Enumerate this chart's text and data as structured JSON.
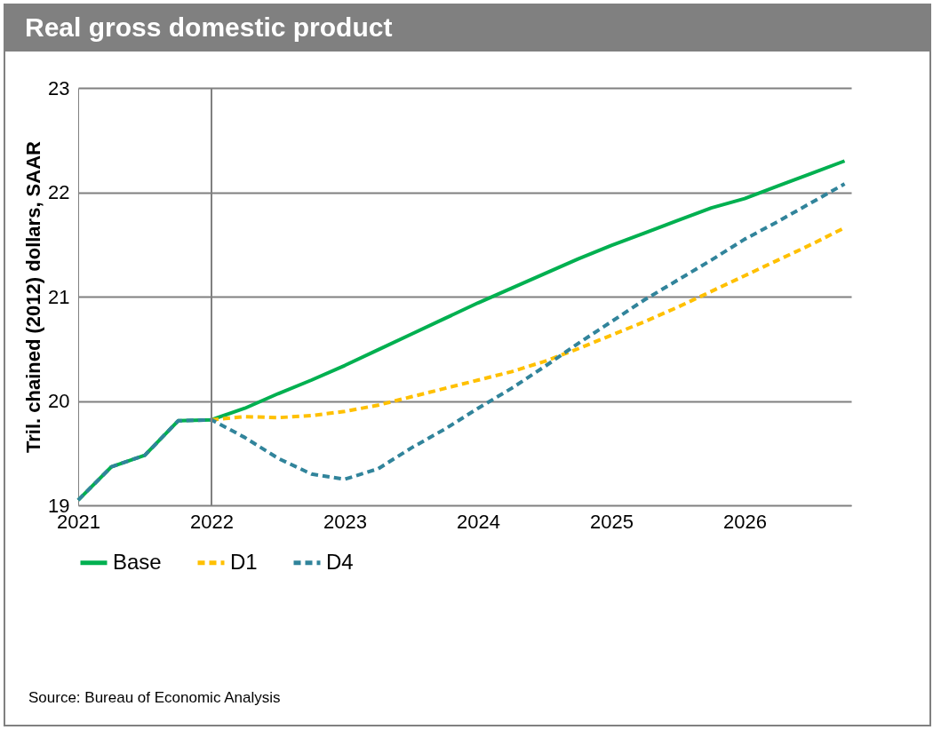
{
  "chart_data": {
    "type": "line",
    "title": "Real gross domestic product",
    "ylabel": "Tril. chained (2012) dollars, SAAR",
    "annotations": [
      "Source: Bureau of Economic Analysis"
    ],
    "x": [
      2021,
      2021.25,
      2021.5,
      2021.75,
      2022,
      2022.25,
      2022.5,
      2022.75,
      2023,
      2023.25,
      2023.5,
      2023.75,
      2024,
      2024.25,
      2024.5,
      2024.75,
      2025,
      2025.25,
      2025.5,
      2025.75,
      2026,
      2026.25,
      2026.5,
      2026.75
    ],
    "series": [
      {
        "name": "Base",
        "color": "#00b050",
        "line_style": "solid",
        "values": [
          19.05,
          19.37,
          19.48,
          19.81,
          19.82,
          19.93,
          20.07,
          20.2,
          20.34,
          20.49,
          20.64,
          20.79,
          20.94,
          21.08,
          21.22,
          21.36,
          21.49,
          21.61,
          21.73,
          21.85,
          21.94,
          22.06,
          22.18,
          22.3
        ]
      },
      {
        "name": "D1",
        "color": "#ffc000",
        "line_style": "dashed",
        "values": [
          null,
          null,
          null,
          null,
          19.82,
          19.85,
          19.84,
          19.86,
          19.9,
          19.96,
          20.04,
          20.12,
          20.2,
          20.28,
          20.38,
          20.5,
          20.63,
          20.76,
          20.9,
          21.05,
          21.2,
          21.35,
          21.5,
          21.66
        ]
      },
      {
        "name": "D4",
        "color": "#31849b",
        "line_style": "dashed",
        "values": [
          19.05,
          19.37,
          19.48,
          19.81,
          19.82,
          19.65,
          19.45,
          19.3,
          19.25,
          19.35,
          19.55,
          19.73,
          19.93,
          20.12,
          20.33,
          20.55,
          20.76,
          20.97,
          21.16,
          21.35,
          21.55,
          21.72,
          21.9,
          22.08
        ]
      }
    ],
    "xlim": [
      2021,
      2026.8
    ],
    "xticks": [
      2021,
      2022,
      2023,
      2024,
      2025,
      2026
    ],
    "ylim": [
      19,
      23
    ],
    "yticks": [
      19,
      20,
      21,
      22,
      23
    ],
    "ref_lines": [
      {
        "axis": "x",
        "value": 2022,
        "color": "#808080"
      }
    ],
    "grid": "y",
    "legend": "bottom"
  }
}
